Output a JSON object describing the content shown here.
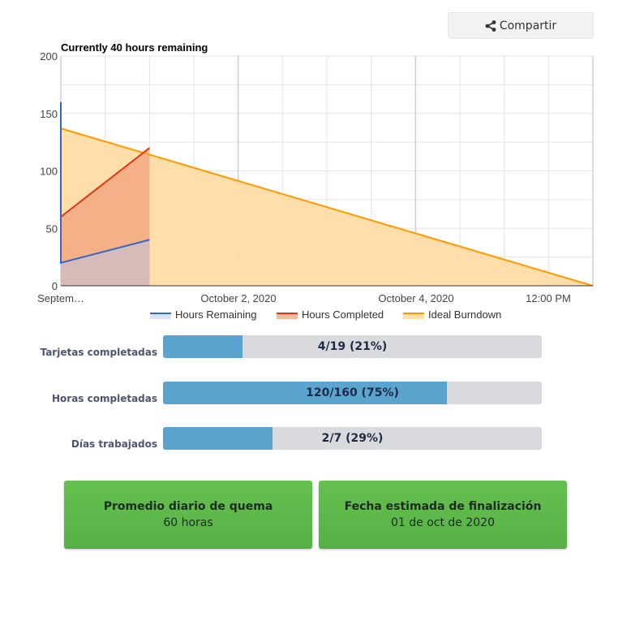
{
  "toolbar": {
    "share_label": "Compartir",
    "share_icon": "share-icon"
  },
  "chart_data": {
    "type": "area",
    "title": "Currently 40 hours remaining",
    "xlabel": "",
    "ylabel": "",
    "ylim": [
      0,
      200
    ],
    "yticks": [
      "0",
      "50",
      "100",
      "150",
      "200"
    ],
    "xticks": [
      "Septem…",
      "October 2, 2020",
      "October 4, 2020",
      "12:00 PM"
    ],
    "xlim": [
      "2020-09-30T00:00",
      "2020-10-06T00:00"
    ],
    "grid": true,
    "legend": "bottom",
    "series": [
      {
        "name": "Hours Remaining",
        "color": "#3366cc",
        "x": [
          "2020-09-30T00:00",
          "2020-09-30T00:00",
          "2020-10-01T00:00"
        ],
        "y": [
          160,
          20,
          40
        ]
      },
      {
        "name": "Hours Completed",
        "color": "#dc3912",
        "x": [
          "2020-09-30T00:00",
          "2020-10-01T00:00"
        ],
        "y": [
          60,
          120
        ]
      },
      {
        "name": "Ideal Burndown",
        "color": "#ff9900",
        "x": [
          "2020-09-30T00:00",
          "2020-10-06T00:00"
        ],
        "y": [
          137,
          0
        ]
      }
    ]
  },
  "progress": [
    {
      "label": "Tarjetas completadas",
      "text": "4/19 (21%)",
      "fraction": 0.21
    },
    {
      "label": "Horas completadas",
      "text": "120/160 (75%)",
      "fraction": 0.75
    },
    {
      "label": "Días trabajados",
      "text": "2/7 (29%)",
      "fraction": 0.29
    }
  ],
  "cards": [
    {
      "title": "Promedio diario de quema",
      "value": "60 horas"
    },
    {
      "title": "Fecha estimada de finalización",
      "value": "01 de oct de 2020"
    }
  ],
  "colors": {
    "progress_fill": "#5ba4cf",
    "progress_track": "#d8dadd",
    "card_green": "#5cb84a"
  }
}
